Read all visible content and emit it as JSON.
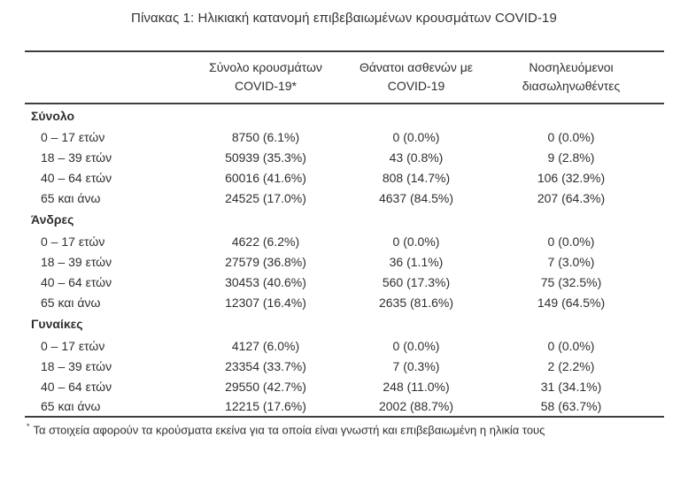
{
  "title": "Πίνακας 1: Ηλικιακή κατανομή επιβεβαιωμένων κρουσμάτων COVID-19",
  "colors": {
    "text": "#2f2f2f",
    "rule": "#3e3e3e",
    "background": "#ffffff"
  },
  "table": {
    "columns": [
      {
        "line1": "Σύνολο κρουσμάτων",
        "line2": "COVID-19*"
      },
      {
        "line1": "Θάνατοι ασθενών με",
        "line2": "COVID-19"
      },
      {
        "line1": "Νοσηλευόμενοι",
        "line2": "διασωληνωθέντες"
      }
    ],
    "sections": [
      {
        "label": "Σύνολο",
        "rows": [
          {
            "age": "0 – 17 ετών",
            "cases": "8750 (6.1%)",
            "deaths": "0 (0.0%)",
            "intubated": "0 (0.0%)"
          },
          {
            "age": "18 – 39 ετών",
            "cases": "50939 (35.3%)",
            "deaths": "43 (0.8%)",
            "intubated": "9 (2.8%)"
          },
          {
            "age": "40 – 64 ετών",
            "cases": "60016 (41.6%)",
            "deaths": "808 (14.7%)",
            "intubated": "106 (32.9%)"
          },
          {
            "age": "65 και άνω",
            "cases": "24525 (17.0%)",
            "deaths": "4637 (84.5%)",
            "intubated": "207 (64.3%)"
          }
        ]
      },
      {
        "label": "Άνδρες",
        "rows": [
          {
            "age": "0 – 17 ετών",
            "cases": "4622 (6.2%)",
            "deaths": "0 (0.0%)",
            "intubated": "0 (0.0%)"
          },
          {
            "age": "18 – 39 ετών",
            "cases": "27579 (36.8%)",
            "deaths": "36 (1.1%)",
            "intubated": "7 (3.0%)"
          },
          {
            "age": "40 – 64 ετών",
            "cases": "30453 (40.6%)",
            "deaths": "560 (17.3%)",
            "intubated": "75 (32.5%)"
          },
          {
            "age": "65 και άνω",
            "cases": "12307 (16.4%)",
            "deaths": "2635 (81.6%)",
            "intubated": "149 (64.5%)"
          }
        ]
      },
      {
        "label": "Γυναίκες",
        "rows": [
          {
            "age": "0 – 17 ετών",
            "cases": "4127 (6.0%)",
            "deaths": "0 (0.0%)",
            "intubated": "0 (0.0%)"
          },
          {
            "age": "18 – 39 ετών",
            "cases": "23354 (33.7%)",
            "deaths": "7 (0.3%)",
            "intubated": "2 (2.2%)"
          },
          {
            "age": "40 – 64 ετών",
            "cases": "29550 (42.7%)",
            "deaths": "248 (11.0%)",
            "intubated": "31 (34.1%)"
          },
          {
            "age": "65 και άνω",
            "cases": "12215 (17.6%)",
            "deaths": "2002 (88.7%)",
            "intubated": "58 (63.7%)"
          }
        ]
      }
    ],
    "footnote_marker": "*",
    "footnote": "Τα στοιχεία αφορούν τα κρούσματα εκείνα για τα οποία είναι γνωστή και επιβεβαιωμένη η ηλικία τους"
  }
}
